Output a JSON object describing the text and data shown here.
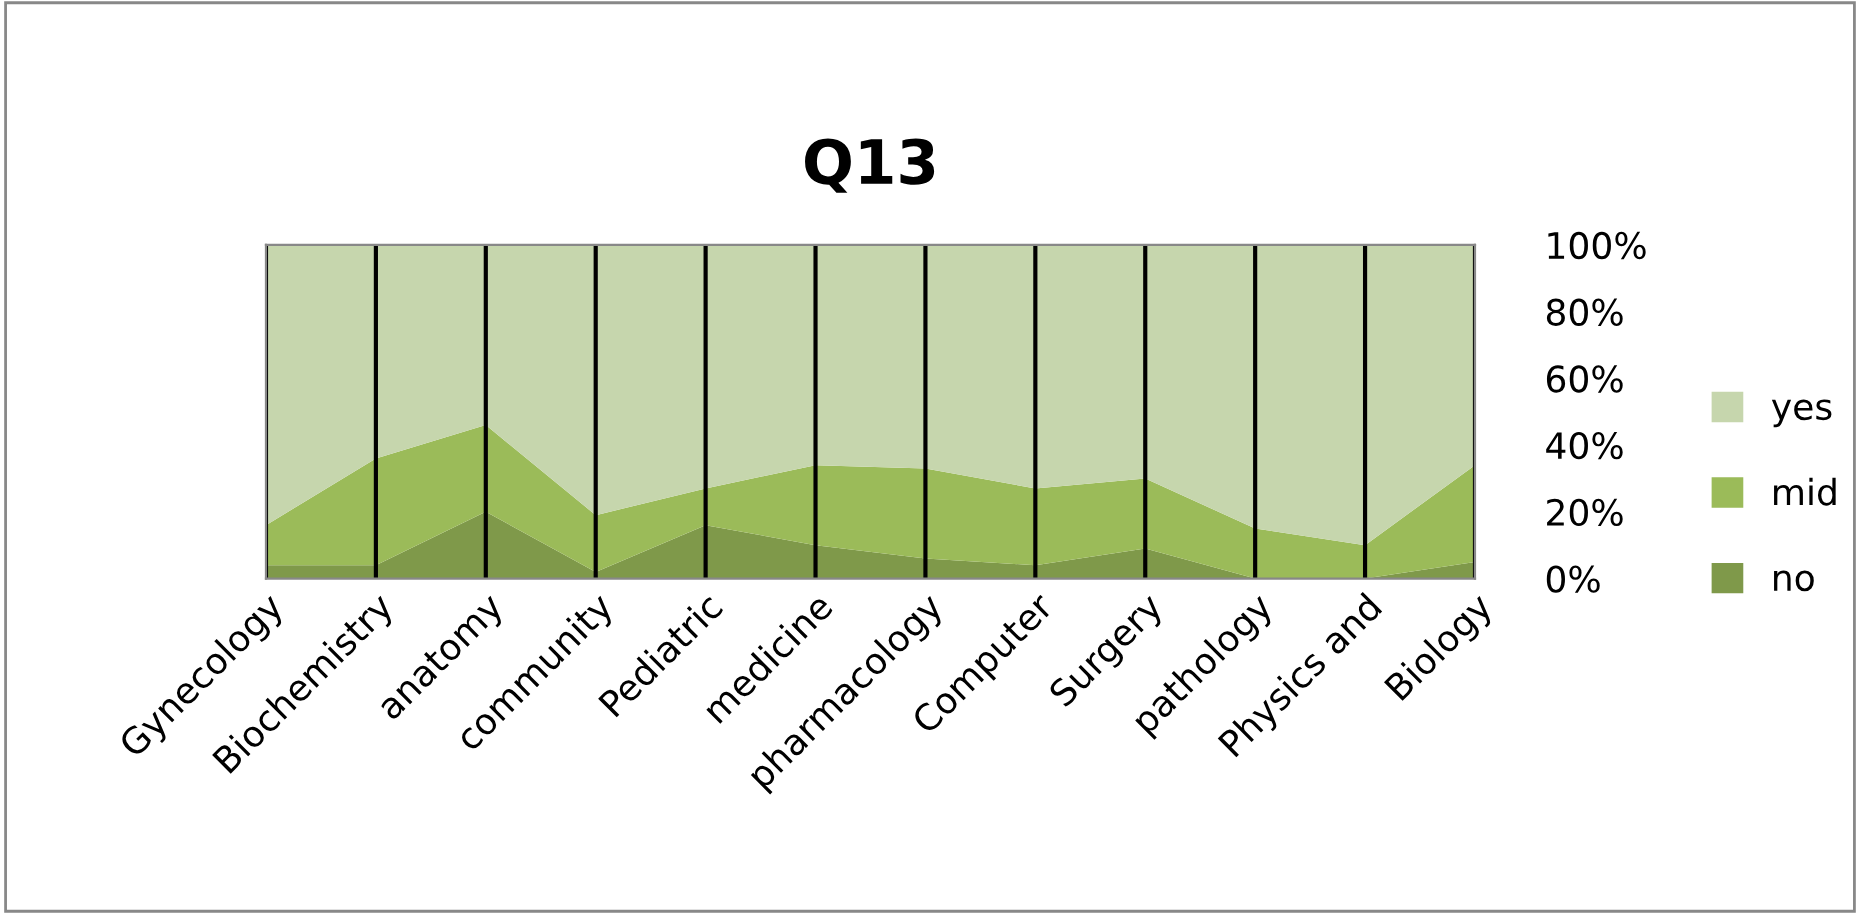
{
  "chart_data": {
    "type": "area",
    "title": "Q13",
    "stacked": true,
    "categories": [
      "Gynecology",
      "Biochemistry",
      "anatomy",
      "community",
      "Pediatric",
      "medicine",
      "pharmacology",
      "Computer",
      "Surgery",
      "pathology",
      "Physics and",
      "Biology"
    ],
    "series": [
      {
        "name": "no",
        "color": "#7f994a",
        "values": [
          4,
          4,
          20,
          2,
          16,
          10,
          6,
          4,
          9,
          0,
          0,
          5
        ]
      },
      {
        "name": "mid",
        "color": "#9bbb59",
        "values": [
          12,
          32,
          26,
          17,
          11,
          24,
          27,
          23,
          21,
          15,
          10,
          29
        ]
      },
      {
        "name": "yes",
        "color": "#c6d6ad",
        "values": [
          84,
          64,
          54,
          81,
          73,
          66,
          67,
          73,
          70,
          85,
          90,
          66
        ]
      }
    ],
    "ylim": [
      0,
      100
    ],
    "yticks": [
      {
        "value": 0,
        "label": "0%"
      },
      {
        "value": 20,
        "label": "20%"
      },
      {
        "value": 40,
        "label": "40%"
      },
      {
        "value": 60,
        "label": "60%"
      },
      {
        "value": 80,
        "label": "80%"
      },
      {
        "value": 100,
        "label": "100%"
      }
    ],
    "grid": "x",
    "legend": "right"
  }
}
